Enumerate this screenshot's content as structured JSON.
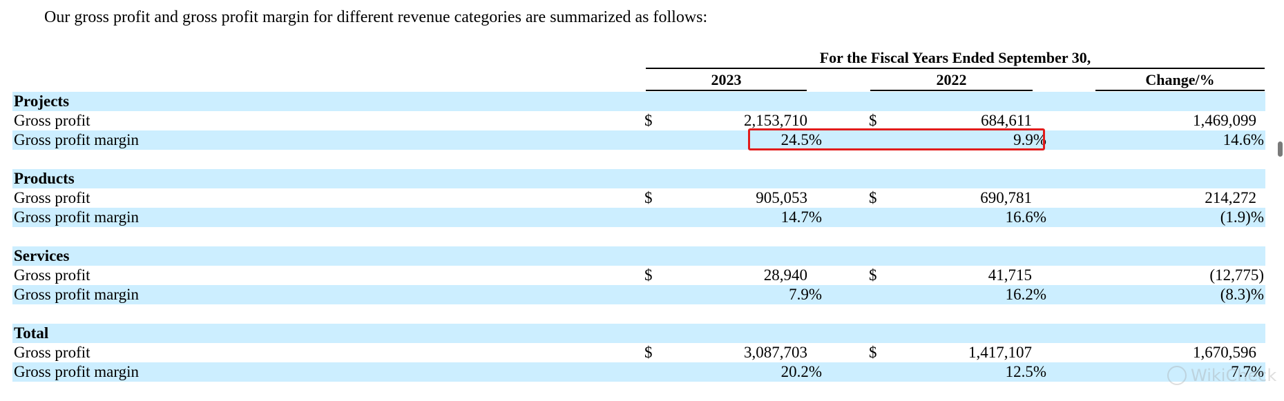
{
  "intro": "Our gross profit and gross profit margin for different revenue categories are summarized as follows:",
  "table": {
    "period_header": "For the Fiscal Years Ended September 30,",
    "columns": [
      "2023",
      "2022",
      "Change/%"
    ],
    "sections": [
      {
        "title": "Projects",
        "rows": [
          {
            "label": "Gross profit",
            "y2023": "2,153,710",
            "y2022": "684,611",
            "change": "1,469,099",
            "currency": "$"
          },
          {
            "label": "Gross profit margin",
            "y2023": "24.5%",
            "y2022": "9.9%",
            "change": "14.6%"
          }
        ]
      },
      {
        "title": "Products",
        "rows": [
          {
            "label": "Gross profit",
            "y2023": "905,053",
            "y2022": "690,781",
            "change": "214,272",
            "currency": "$"
          },
          {
            "label": "Gross profit margin",
            "y2023": "14.7%",
            "y2022": "16.6%",
            "change": "(1.9)%"
          }
        ]
      },
      {
        "title": "Services",
        "rows": [
          {
            "label": "Gross profit",
            "y2023": "28,940",
            "y2022": "41,715",
            "change": "(12,775)",
            "currency": "$"
          },
          {
            "label": "Gross profit margin",
            "y2023": "7.9%",
            "y2022": "16.2%",
            "change": "(8.3)%"
          }
        ]
      },
      {
        "title": "Total",
        "rows": [
          {
            "label": "Gross profit",
            "y2023": "3,087,703",
            "y2022": "1,417,107",
            "change": "1,670,596",
            "currency": "$"
          },
          {
            "label": "Gross profit margin",
            "y2023": "20.2%",
            "y2022": "12.5%",
            "change": "7.7%"
          }
        ]
      }
    ]
  },
  "watermark": "WikiCheck",
  "colors": {
    "row_shade": "#cceeff",
    "highlight": "#e21b1b"
  }
}
